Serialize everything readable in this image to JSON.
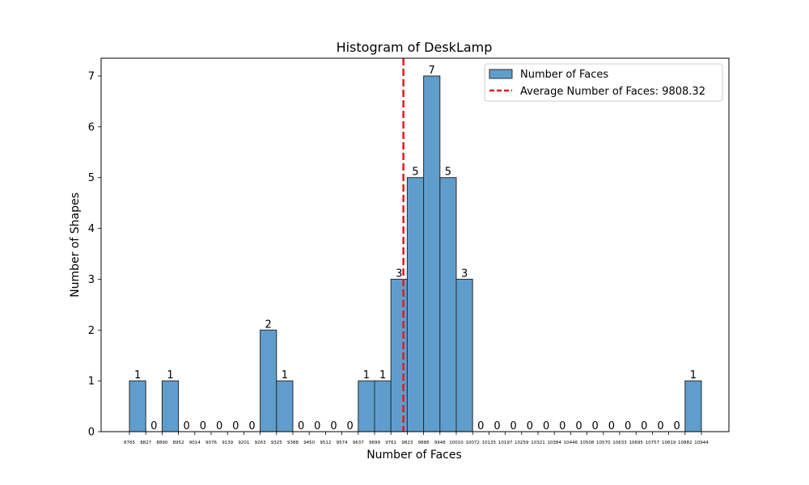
{
  "chart_data": {
    "type": "bar",
    "title": "Histogram of DeskLamp",
    "xlabel": "Number of Faces",
    "ylabel": "Number of Shapes",
    "ylim": [
      0,
      7.35
    ],
    "yticks": [
      0,
      1,
      2,
      3,
      4,
      5,
      6,
      7
    ],
    "bin_edges": [
      8765,
      8827,
      8890,
      8952,
      9014,
      9076,
      9139,
      9201,
      9263,
      9325,
      9388,
      9450,
      9512,
      9574,
      9637,
      9699,
      9761,
      9823,
      9886,
      9948,
      10010,
      10072,
      10135,
      10197,
      10259,
      10321,
      10384,
      10446,
      10508,
      10570,
      10633,
      10695,
      10757,
      10819,
      10882,
      10944
    ],
    "values": [
      1,
      0,
      1,
      0,
      0,
      0,
      0,
      0,
      2,
      1,
      0,
      0,
      0,
      0,
      1,
      1,
      3,
      5,
      7,
      5,
      3,
      0,
      0,
      0,
      0,
      0,
      0,
      0,
      0,
      0,
      0,
      0,
      0,
      0,
      1
    ],
    "average": 9808.32,
    "bar_color": "#5f9ecc",
    "bar_edge_color": "#2b2b2b",
    "average_line_color": "#e31a1c",
    "grid": false,
    "legend": {
      "placement": "top-right",
      "entries": [
        {
          "label": "Number of Faces",
          "kind": "bar"
        },
        {
          "label": "Average Number of Faces: 9808.32",
          "kind": "dashed-line"
        }
      ]
    }
  }
}
